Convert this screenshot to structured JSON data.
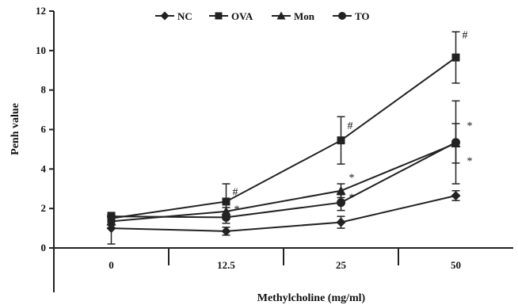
{
  "chart_data": {
    "type": "line",
    "xlabel": "Methylcholine (mg/ml)",
    "ylabel": "Penh value",
    "categories": [
      "0",
      "12.5",
      "25",
      "50"
    ],
    "ylim": [
      0,
      12
    ],
    "yticks": [
      "0",
      "2",
      "4",
      "6",
      "8",
      "10",
      "12"
    ],
    "legend_position": "top",
    "grid": false,
    "series": [
      {
        "name": "NC",
        "marker": "diamond",
        "values": [
          1.0,
          0.85,
          1.3,
          2.65
        ],
        "errors": [
          0.8,
          0.2,
          0.3,
          0.25
        ],
        "annotations": [
          null,
          null,
          null,
          null
        ]
      },
      {
        "name": "OVA",
        "marker": "square",
        "values": [
          1.5,
          2.35,
          5.45,
          9.65
        ],
        "errors": [
          0.2,
          0.9,
          1.2,
          1.3
        ],
        "annotations": [
          null,
          "#",
          "#",
          "#"
        ]
      },
      {
        "name": "Mon",
        "marker": "triangle",
        "values": [
          1.35,
          1.85,
          2.9,
          5.3
        ],
        "errors": [
          0.2,
          0.2,
          0.35,
          1.0
        ],
        "annotations": [
          null,
          null,
          "*",
          "*"
        ]
      },
      {
        "name": "TO",
        "marker": "circle",
        "values": [
          1.6,
          1.55,
          2.3,
          5.35
        ],
        "errors": [
          0.15,
          0.3,
          0.4,
          2.1
        ],
        "annotations": [
          null,
          "*",
          "*",
          "*"
        ]
      }
    ]
  }
}
